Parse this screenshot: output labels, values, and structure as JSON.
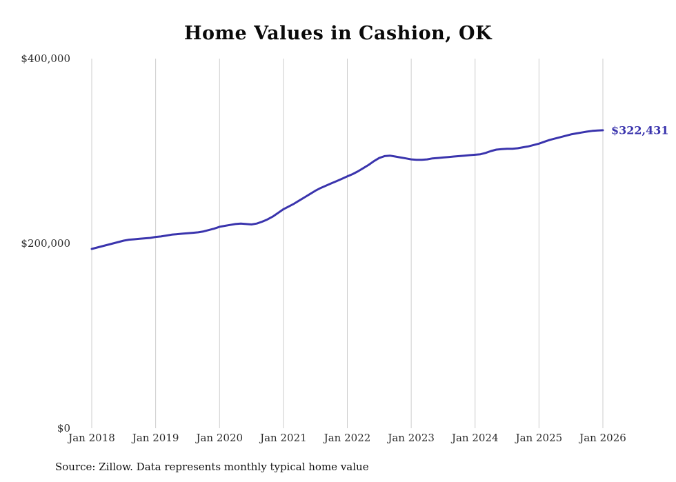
{
  "chart_data": {
    "type": "line",
    "title": "Home Values in Cashion, OK",
    "x_tick_labels": [
      "Jan 2018",
      "Jan 2019",
      "Jan 2020",
      "Jan 2021",
      "Jan 2022",
      "Jan 2023",
      "Jan 2024",
      "Jan 2025",
      "Jan 2026"
    ],
    "y_tick_labels": [
      "$0",
      "$200,000",
      "$400,000"
    ],
    "ylim": [
      0,
      400000
    ],
    "x_unit": "month",
    "grid": "vertical",
    "gridline_color": "#cccccc",
    "line_color": "#3a34ad",
    "end_label": "$322,431",
    "final_value": 322431,
    "source": "Source: Zillow. Data represents monthly typical home value",
    "series": [
      {
        "name": "Typical home value",
        "color": "#3a34ad",
        "values": [
          194000,
          195500,
          197000,
          198500,
          200000,
          201500,
          203000,
          204000,
          204500,
          205000,
          205500,
          206000,
          207000,
          207500,
          208500,
          209500,
          210000,
          210500,
          211000,
          211500,
          212000,
          213000,
          214500,
          216000,
          218000,
          219000,
          220000,
          221000,
          221500,
          221000,
          220500,
          221500,
          223500,
          226000,
          229000,
          233000,
          237000,
          240000,
          243000,
          246500,
          250000,
          253500,
          257000,
          260000,
          262500,
          265000,
          267500,
          270000,
          272500,
          275000,
          278000,
          281500,
          285000,
          289000,
          292500,
          294500,
          295000,
          294000,
          293000,
          292000,
          291000,
          290500,
          290500,
          291000,
          292000,
          292500,
          293000,
          293500,
          294000,
          294500,
          295000,
          295500,
          296000,
          296500,
          298000,
          300000,
          301500,
          302000,
          302500,
          302500,
          303000,
          304000,
          305000,
          306500,
          308000,
          310000,
          312000,
          313500,
          315000,
          316500,
          318000,
          319000,
          320000,
          321000,
          321800,
          322200,
          322431
        ]
      }
    ]
  }
}
